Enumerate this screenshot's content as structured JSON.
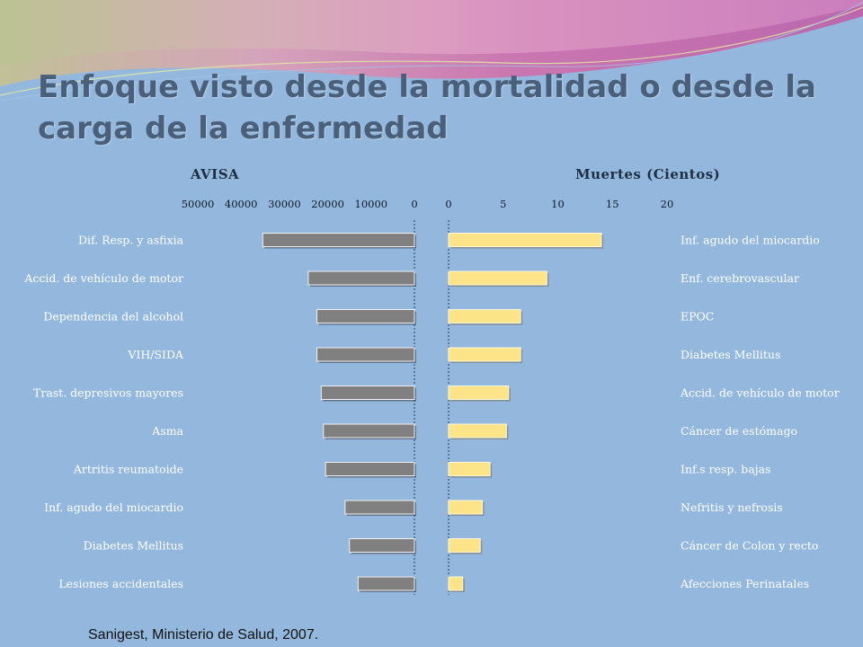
{
  "slide": {
    "title": "Enfoque visto desde la mortalidad o desde la carga de la enfermedad",
    "source": "Sanigest, Ministerio de Salud, 2007."
  },
  "colors": {
    "background": "#94b8dd",
    "left_bar": "#808080",
    "right_bar": "#fde489",
    "title": "#4a5f7a"
  },
  "chart_data": [
    {
      "type": "bar",
      "orientation": "horizontal",
      "reversed_x": true,
      "title": "AVISA",
      "xlim": [
        0,
        50000
      ],
      "ticks": [
        "50000",
        "40000",
        "30000",
        "20000",
        "10000",
        "0"
      ],
      "tick_values": [
        50000,
        40000,
        30000,
        20000,
        10000,
        0
      ],
      "categories": [
        "Dif. Resp. y asfixia",
        "Accid. de vehículo de motor",
        "Dependencia del alcohol",
        "VIH/SIDA",
        "Trast. depresivos mayores",
        "Asma",
        "Artritis reumatoide",
        "Inf. agudo del miocardio",
        "Diabetes Mellitus",
        "Lesiones accidentales"
      ],
      "values": [
        35000,
        24500,
        22500,
        22500,
        21500,
        21000,
        20500,
        16000,
        15000,
        13000
      ]
    },
    {
      "type": "bar",
      "orientation": "horizontal",
      "title": "Muertes (Cientos)",
      "xlim": [
        0,
        20
      ],
      "ticks": [
        "0",
        "5",
        "10",
        "15",
        "20"
      ],
      "tick_values": [
        0,
        5,
        10,
        15,
        20
      ],
      "categories": [
        "Inf. agudo del miocardio",
        "Enf. cerebrovascular",
        "EPOC",
        "Diabetes Mellitus",
        "Accid. de vehículo de motor",
        "Cáncer de estómago",
        "Inf.s resp. bajas",
        "Nefritis y nefrosis",
        "Cáncer de Colon y recto",
        "Afecciones Perinatales"
      ],
      "values": [
        14,
        9,
        6.6,
        6.6,
        5.5,
        5.3,
        3.8,
        3.1,
        2.9,
        1.3
      ]
    }
  ]
}
